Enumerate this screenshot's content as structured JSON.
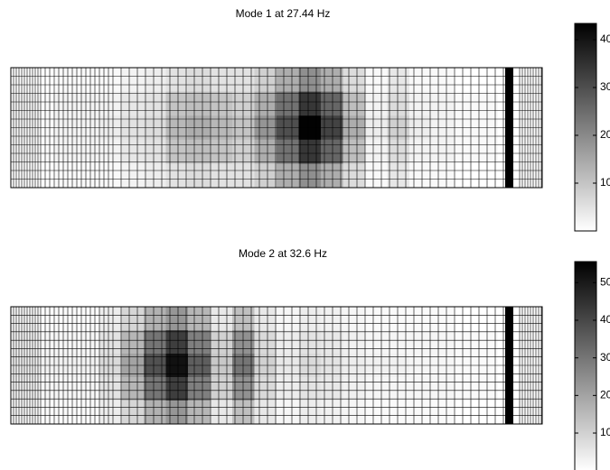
{
  "chart_data": [
    {
      "type": "heatmap",
      "title": "Mode 1 at 27.44 Hz",
      "low_color": "#ffffff",
      "high_color": "#000000",
      "zlim": [
        0,
        43.4
      ],
      "zticks": [
        10,
        20,
        30,
        40
      ],
      "values": [
        [
          0,
          0,
          1,
          1,
          1,
          2,
          3,
          5,
          6,
          5,
          5,
          8,
          14,
          19,
          14,
          6,
          1,
          4,
          1,
          1,
          0,
          0,
          0,
          0
        ],
        [
          1,
          1,
          2,
          2,
          2,
          4,
          5,
          10,
          11,
          10,
          8,
          14,
          24,
          34,
          26,
          11,
          2,
          6,
          2,
          2,
          1,
          1,
          0,
          0
        ],
        [
          1,
          1,
          2,
          2,
          3,
          5,
          6,
          12,
          14,
          12,
          10,
          18,
          30,
          43,
          32,
          14,
          3,
          8,
          3,
          2,
          1,
          1,
          0,
          0
        ],
        [
          1,
          1,
          2,
          2,
          2,
          4,
          5,
          10,
          11,
          10,
          8,
          14,
          24,
          34,
          26,
          11,
          2,
          6,
          2,
          2,
          1,
          1,
          0,
          0
        ],
        [
          0,
          0,
          1,
          1,
          1,
          2,
          3,
          5,
          6,
          5,
          5,
          8,
          14,
          19,
          14,
          6,
          1,
          4,
          1,
          1,
          0,
          0,
          0,
          0
        ]
      ]
    },
    {
      "type": "heatmap",
      "title": "Mode 2 at 32.6 Hz",
      "low_color": "#ffffff",
      "high_color": "#000000",
      "zlim": [
        0,
        55.6
      ],
      "zticks": [
        10,
        20,
        30,
        40,
        50
      ],
      "values": [
        [
          1,
          1,
          1,
          1,
          4,
          9,
          17,
          23,
          16,
          5,
          14,
          5,
          2,
          4,
          3,
          2,
          1,
          1,
          1,
          1,
          0,
          0,
          0,
          0
        ],
        [
          2,
          2,
          2,
          2,
          6,
          16,
          30,
          42,
          28,
          10,
          24,
          8,
          4,
          6,
          5,
          3,
          2,
          2,
          2,
          2,
          1,
          1,
          0,
          0
        ],
        [
          3,
          3,
          3,
          3,
          8,
          20,
          38,
          52,
          35,
          12,
          30,
          10,
          5,
          8,
          6,
          4,
          3,
          3,
          2,
          2,
          1,
          1,
          0,
          0
        ],
        [
          2,
          2,
          2,
          2,
          6,
          16,
          30,
          42,
          28,
          10,
          24,
          8,
          4,
          6,
          5,
          3,
          2,
          2,
          2,
          2,
          1,
          1,
          0,
          0
        ],
        [
          1,
          1,
          1,
          1,
          4,
          9,
          17,
          23,
          16,
          5,
          14,
          5,
          2,
          4,
          3,
          2,
          1,
          1,
          1,
          1,
          0,
          0,
          0,
          0
        ]
      ]
    }
  ]
}
